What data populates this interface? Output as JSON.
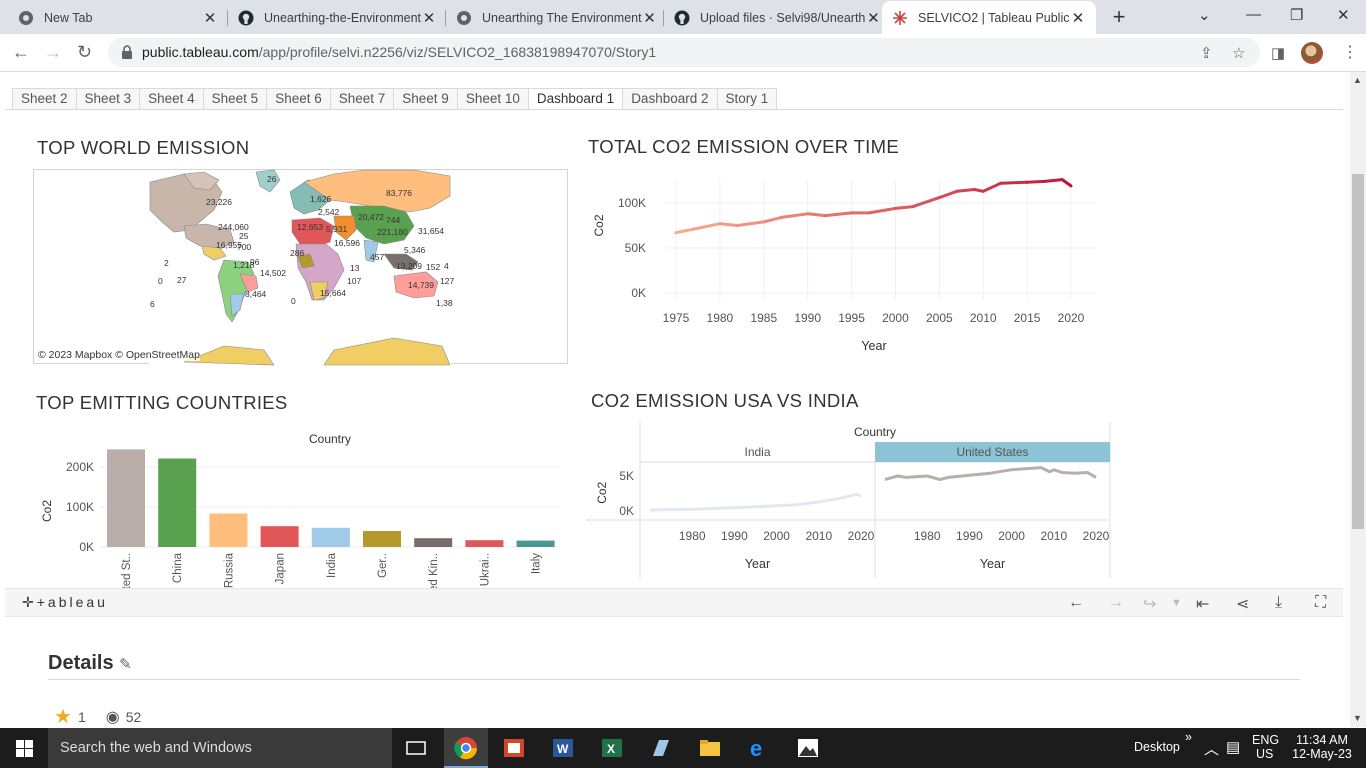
{
  "browser": {
    "tabs": [
      {
        "title": "New Tab"
      },
      {
        "title": "Unearthing-the-Environment"
      },
      {
        "title": "Unearthing The Environment"
      },
      {
        "title": "Upload files · Selvi98/Unearth"
      },
      {
        "title": "SELVICO2 | Tableau Public"
      }
    ],
    "url_host": "public.tableau.com",
    "url_path": "/app/profile/selvi.n2256/viz/SELVICO2_16838198947070/Story1"
  },
  "sheet_tabs": [
    "Sheet 2",
    "Sheet 3",
    "Sheet 4",
    "Sheet 5",
    "Sheet 6",
    "Sheet 7",
    "Sheet 9",
    "Sheet 10",
    "Dashboard 1",
    "Dashboard 2",
    "Story 1"
  ],
  "active_sheet_tab": "Dashboard 1",
  "map": {
    "title": "TOP WORLD EMISSION",
    "credit": "© 2023 Mapbox  © OpenStreetMap",
    "labels": [
      "26",
      "83,776",
      "23,226",
      "1,626",
      "2,542",
      "20,472",
      "744",
      "244,060",
      "25",
      "12,653",
      "5,931",
      "221,180",
      "31,654",
      "16,955",
      "700",
      "16,596",
      "5,346",
      "2",
      "96",
      "286",
      "457",
      "4",
      "1,218",
      "14,502",
      "13",
      "13,209",
      "152",
      "27",
      "0",
      "107",
      "14,739",
      "127",
      "8,464",
      "15,664",
      "6",
      "0",
      "1,38"
    ]
  },
  "total_over_time": {
    "title": "TOTAL CO2 EMISSION OVER TIME"
  },
  "top_emitting": {
    "title": "TOP EMITTING COUNTRIES",
    "header": "Country"
  },
  "usa_vs_india": {
    "title": "CO2 EMISSION USA VS INDIA",
    "header": "Country"
  },
  "chart_data": [
    {
      "type": "line",
      "title": "TOTAL CO2 EMISSION OVER TIME",
      "xlabel": "Year",
      "ylabel": "Co2",
      "x": [
        1975,
        1977,
        1980,
        1982,
        1985,
        1987,
        1990,
        1992,
        1995,
        1997,
        2000,
        2002,
        2005,
        2007,
        2009,
        2010,
        2012,
        2015,
        2017,
        2019,
        2020
      ],
      "y": [
        67000,
        71000,
        77000,
        75000,
        79000,
        84000,
        88000,
        86000,
        89000,
        89000,
        94000,
        96000,
        106000,
        113000,
        115000,
        113000,
        122000,
        123000,
        124000,
        126000,
        119000
      ],
      "xticks": [
        "1975",
        "1980",
        "1985",
        "1990",
        "1995",
        "2000",
        "2005",
        "2010",
        "2015",
        "2020"
      ],
      "yticks": [
        "0K",
        "50K",
        "100K"
      ],
      "ylim": [
        0,
        130000
      ]
    },
    {
      "type": "bar",
      "title": "TOP EMITTING COUNTRIES",
      "ylabel": "Co2",
      "categories": [
        "United St..",
        "China",
        "Russia",
        "Japan",
        "India",
        "Ger..",
        "United Kin..",
        "Ukrai..",
        "Italy"
      ],
      "values": [
        244060,
        221180,
        83776,
        52000,
        48000,
        40000,
        22000,
        17000,
        16000
      ],
      "colors": [
        "#b9aea9",
        "#59a14f",
        "#ffbe7d",
        "#e15759",
        "#a0cbe8",
        "#b6992d",
        "#7b6a6b",
        "#e15759",
        "#499894"
      ],
      "yticks": [
        "0K",
        "100K",
        "200K"
      ],
      "ylim": [
        0,
        250000
      ]
    },
    {
      "type": "line",
      "title": "CO2 EMISSION USA VS INDIA",
      "ylabel": "Co2",
      "yticks": [
        "0K",
        "5K"
      ],
      "ylim": [
        0,
        6500
      ],
      "panels": [
        {
          "name": "India",
          "xlabel": "Year",
          "xticks": [
            "1980",
            "1990",
            "2000",
            "2010",
            "2020"
          ],
          "color": "#e1e9f0",
          "x": [
            1970,
            1980,
            1990,
            2000,
            2005,
            2010,
            2015,
            2019,
            2020
          ],
          "y": [
            150,
            250,
            450,
            750,
            900,
            1300,
            1800,
            2400,
            2100
          ]
        },
        {
          "name": "United States",
          "xlabel": "Year",
          "xticks": [
            "1980",
            "1990",
            "2000",
            "2010",
            "2020"
          ],
          "color": "#b9aea9",
          "x": [
            1970,
            1973,
            1975,
            1980,
            1983,
            1985,
            1990,
            1995,
            2000,
            2005,
            2007,
            2009,
            2010,
            2012,
            2015,
            2018,
            2020
          ],
          "y": [
            4500,
            5000,
            4800,
            5000,
            4500,
            4800,
            5100,
            5400,
            5900,
            6100,
            6200,
            5600,
            5900,
            5500,
            5400,
            5500,
            4800
          ]
        }
      ]
    }
  ],
  "tableau_footer": {
    "logo": "+ableau"
  },
  "details": {
    "title": "Details",
    "favorites": "1",
    "views": "52"
  },
  "taskbar": {
    "search_placeholder": "Search the web and Windows",
    "desktop": "Desktop",
    "lang1": "ENG",
    "lang2": "US",
    "time": "11:34 AM",
    "date": "12-May-23"
  }
}
